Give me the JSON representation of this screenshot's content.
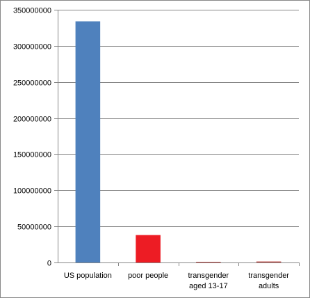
{
  "chart_data": {
    "type": "bar",
    "categories": [
      "US population",
      "poor people",
      "transgender aged 13-17",
      "transgender adults"
    ],
    "category_lines": [
      [
        "US population"
      ],
      [
        "poor people"
      ],
      [
        "transgender",
        "aged 13-17"
      ],
      [
        "transgender",
        "adults"
      ]
    ],
    "values": [
      334000000,
      38000000,
      300000,
      1400000
    ],
    "bar_colors": [
      "#4f81bd",
      "#ed1c24",
      "#c0504d",
      "#c0504d"
    ],
    "ylim": [
      0,
      350000000
    ],
    "yticks": [
      0,
      50000000,
      100000000,
      150000000,
      200000000,
      250000000,
      300000000,
      350000000
    ],
    "ytick_labels": [
      "0",
      "50000000",
      "100000000",
      "150000000",
      "200000000",
      "250000000",
      "300000000",
      "350000000"
    ],
    "grid": true,
    "grid_color": "#868686",
    "title": "",
    "xlabel": "",
    "ylabel": ""
  }
}
